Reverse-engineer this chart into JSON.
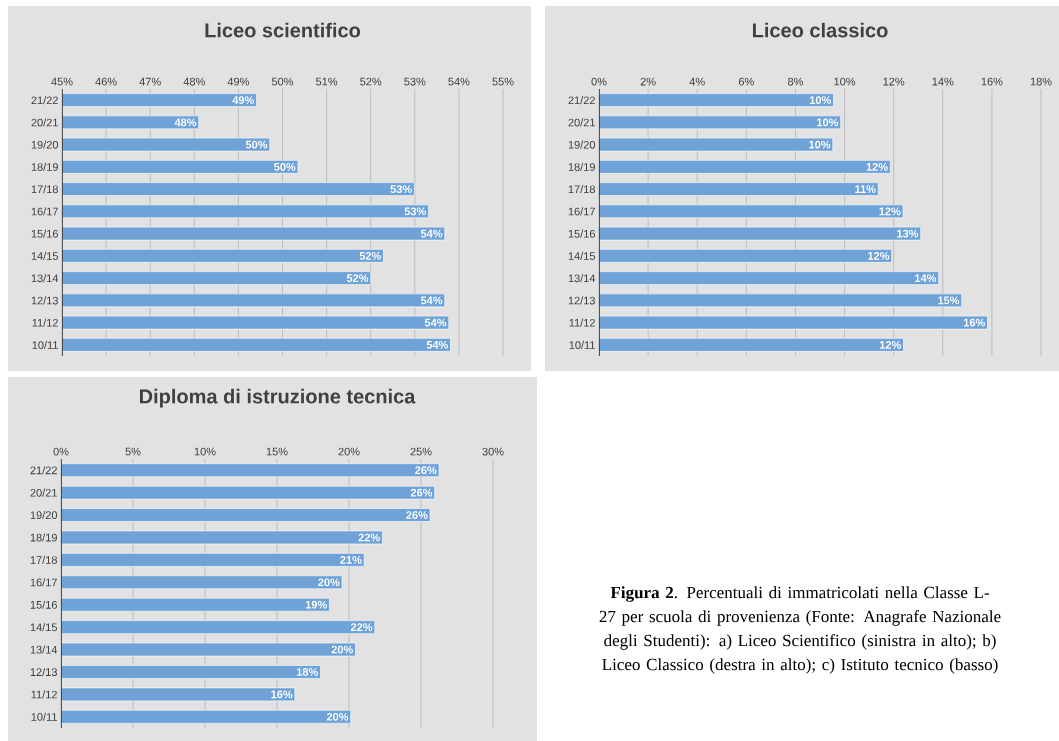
{
  "chart_data": [
    {
      "type": "bar",
      "orientation": "horizontal",
      "title": "Liceo scientifico",
      "categories": [
        "21/22",
        "20/21",
        "19/20",
        "18/19",
        "17/18",
        "16/17",
        "15/16",
        "14/15",
        "13/14",
        "12/13",
        "11/12",
        "10/11"
      ],
      "values": [
        49.41,
        48.1,
        49.71,
        50.35,
        52.99,
        53.31,
        53.68,
        52.29,
        52.0,
        53.68,
        53.77,
        53.81
      ],
      "value_labels": [
        "49%",
        "48%",
        "50%",
        "50%",
        "53%",
        "53%",
        "54%",
        "52%",
        "52%",
        "54%",
        "54%",
        "54%"
      ],
      "color": "#6fa3d8",
      "xlim": [
        45,
        55
      ],
      "xticks": [
        {
          "value": 45,
          "label": "45%"
        },
        {
          "value": 46,
          "label": "46%"
        },
        {
          "value": 47,
          "label": "47%"
        },
        {
          "value": 48,
          "label": "48%"
        },
        {
          "value": 49,
          "label": "49%"
        },
        {
          "value": 50,
          "label": "50%"
        },
        {
          "value": 51,
          "label": "51%"
        },
        {
          "value": 52,
          "label": "52%"
        },
        {
          "value": 53,
          "label": "53%"
        },
        {
          "value": 54,
          "label": "54%"
        },
        {
          "value": 55,
          "label": "55%"
        }
      ],
      "grid": "x"
    },
    {
      "type": "bar",
      "orientation": "horizontal",
      "title": "Liceo classico",
      "categories": [
        "21/22",
        "20/21",
        "19/20",
        "18/19",
        "17/18",
        "16/17",
        "15/16",
        "14/15",
        "13/14",
        "12/13",
        "11/12",
        "10/11"
      ],
      "values": [
        9.55,
        9.84,
        9.52,
        11.86,
        11.37,
        12.38,
        13.1,
        11.92,
        13.83,
        14.77,
        15.82,
        12.4
      ],
      "value_labels": [
        "10%",
        "10%",
        "10%",
        "12%",
        "11%",
        "12%",
        "13%",
        "12%",
        "14%",
        "15%",
        "16%",
        "12%"
      ],
      "color": "#6fa3d8",
      "xlim": [
        0,
        18
      ],
      "xticks": [
        {
          "value": 0,
          "label": "0%"
        },
        {
          "value": 2,
          "label": "2%"
        },
        {
          "value": 4,
          "label": "4%"
        },
        {
          "value": 6,
          "label": "6%"
        },
        {
          "value": 8,
          "label": "8%"
        },
        {
          "value": 10,
          "label": "10%"
        },
        {
          "value": 12,
          "label": "12%"
        },
        {
          "value": 14,
          "label": "14%"
        },
        {
          "value": 16,
          "label": "16%"
        },
        {
          "value": 18,
          "label": "18%"
        }
      ],
      "grid": "x"
    },
    {
      "type": "bar",
      "orientation": "horizontal",
      "title": "Diploma di istruzione tecnica",
      "categories": [
        "21/22",
        "20/21",
        "19/20",
        "18/19",
        "17/18",
        "16/17",
        "15/16",
        "14/15",
        "13/14",
        "12/13",
        "11/12",
        "10/11"
      ],
      "values": [
        26.25,
        25.95,
        25.63,
        22.32,
        21.05,
        19.52,
        18.64,
        21.79,
        20.45,
        18.02,
        16.24,
        20.12
      ],
      "value_labels": [
        "26%",
        "26%",
        "26%",
        "22%",
        "21%",
        "20%",
        "19%",
        "22%",
        "20%",
        "18%",
        "16%",
        "20%"
      ],
      "color": "#6fa3d8",
      "xlim": [
        0,
        30
      ],
      "xticks": [
        {
          "value": 0,
          "label": "0%"
        },
        {
          "value": 5,
          "label": "5%"
        },
        {
          "value": 10,
          "label": "10%"
        },
        {
          "value": 15,
          "label": "15%"
        },
        {
          "value": 20,
          "label": "20%"
        },
        {
          "value": 25,
          "label": "25%"
        },
        {
          "value": 30,
          "label": "30%"
        }
      ],
      "grid": "x",
      "annotations": [
        "**Figura 2**. Percentuali di immatricolati nella Classe L-27 per scuola di provenienza (Fonte: Anagrafe Nazionale degli Studenti): a) Liceo Scientifico (sinistra in alto); b) Liceo Classico (destra in alto); c) Istituto tecnico (basso)"
      ]
    }
  ]
}
